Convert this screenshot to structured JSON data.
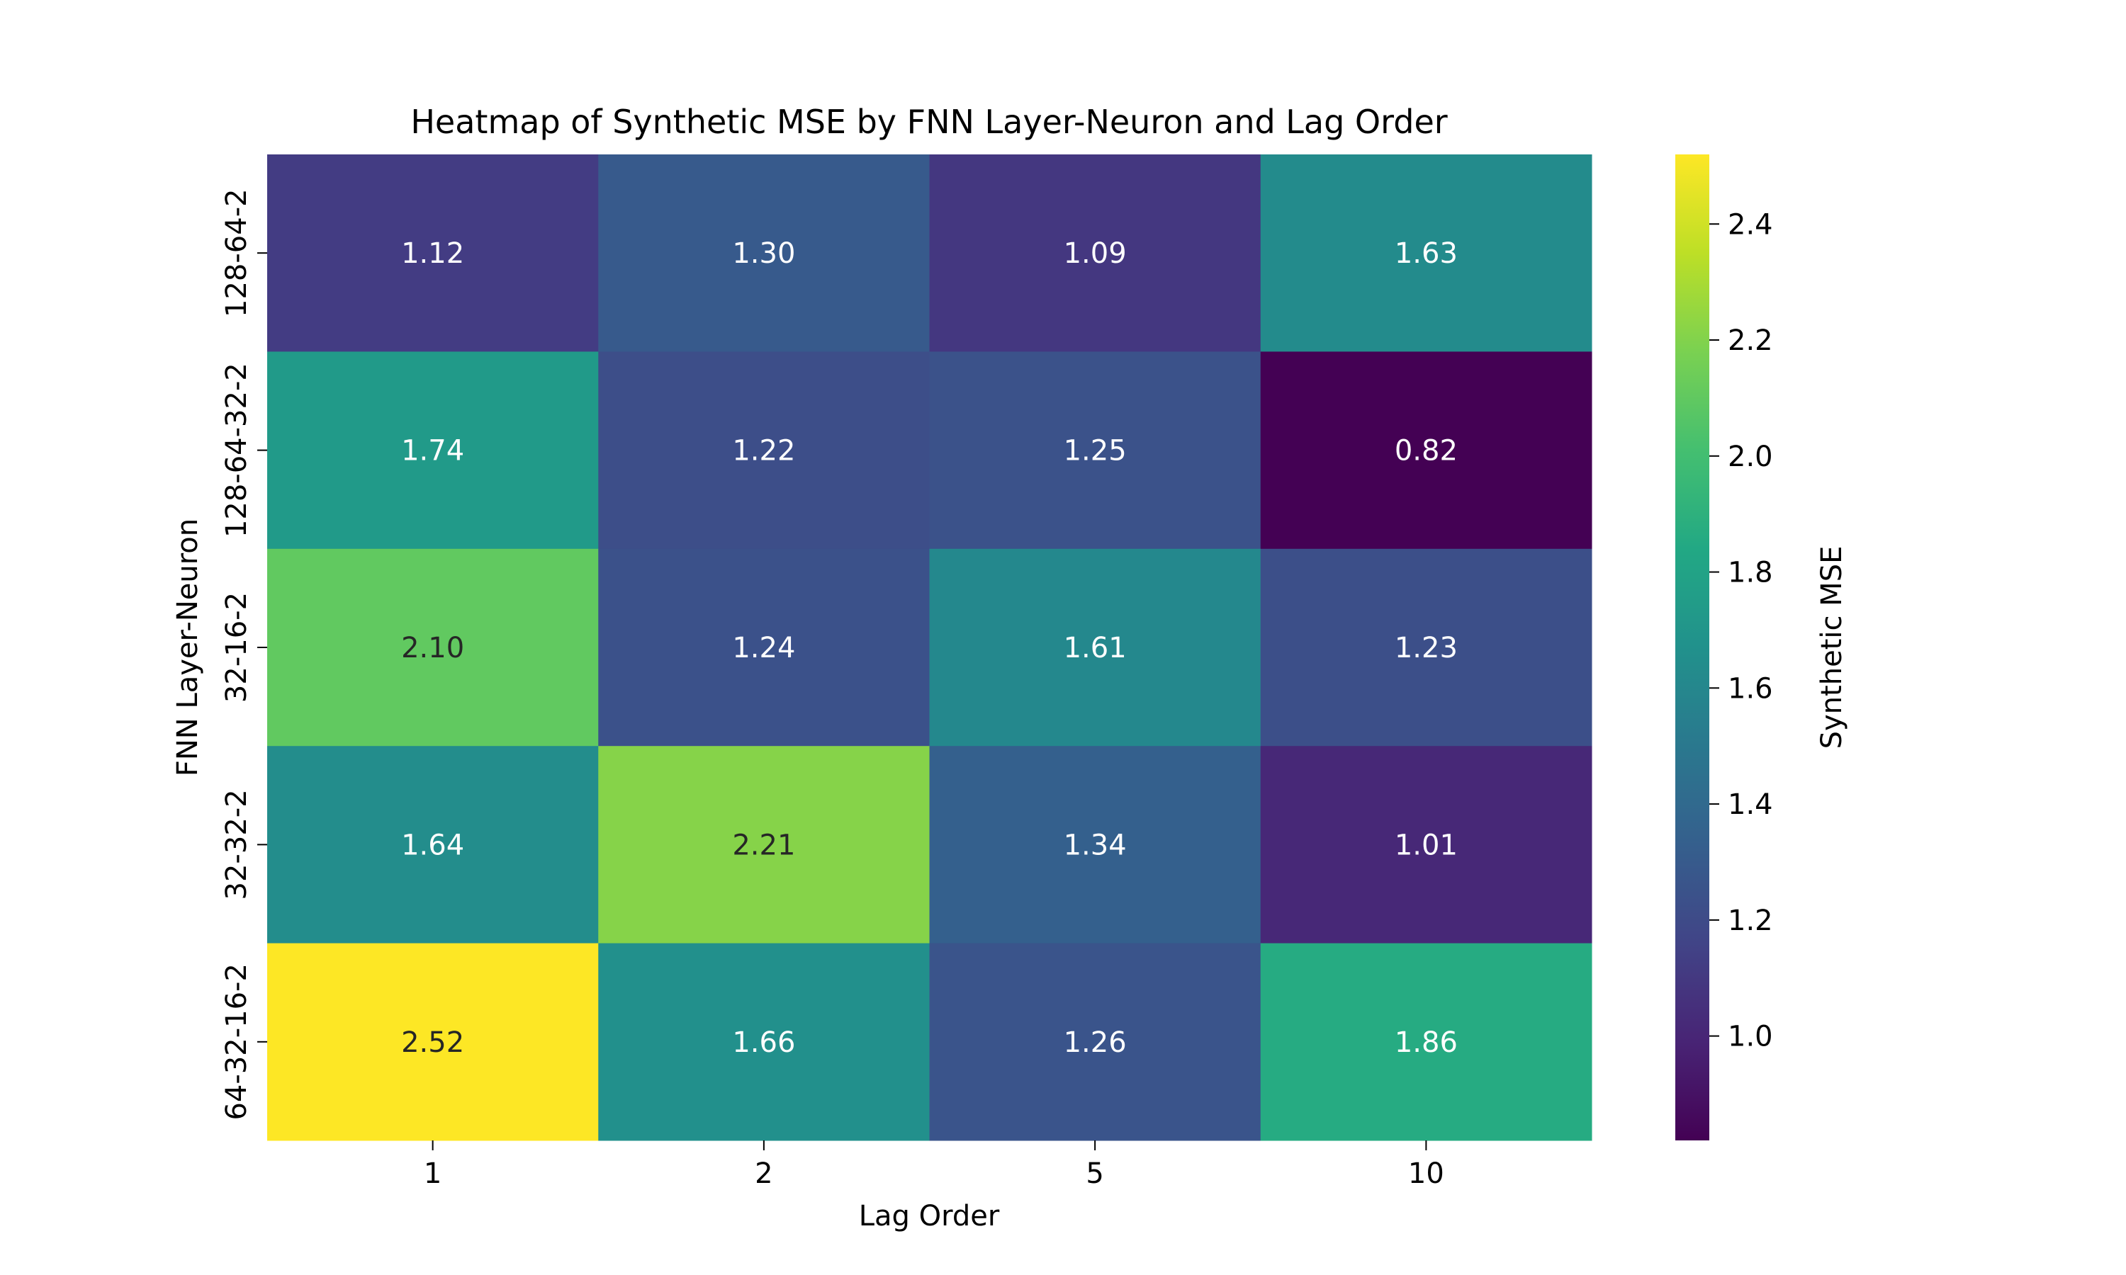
{
  "chart_data": {
    "type": "heatmap",
    "title": "Heatmap of Synthetic MSE by FNN Layer-Neuron and Lag Order",
    "xlabel": "Lag Order",
    "ylabel": "FNN Layer-Neuron",
    "x_categories": [
      "1",
      "2",
      "5",
      "10"
    ],
    "y_categories": [
      "128-64-2",
      "128-64-32-2",
      "32-16-2",
      "32-32-2",
      "64-32-16-2"
    ],
    "values": [
      [
        1.12,
        1.3,
        1.09,
        1.63
      ],
      [
        1.74,
        1.22,
        1.25,
        0.82
      ],
      [
        2.1,
        1.24,
        1.61,
        1.23
      ],
      [
        1.64,
        2.21,
        1.34,
        1.01
      ],
      [
        2.52,
        1.66,
        1.26,
        1.86
      ]
    ],
    "value_format": "0.00",
    "colormap": "viridis",
    "colorbar": {
      "label": "Synthetic MSE",
      "vmin": 0.82,
      "vmax": 2.52,
      "ticks": [
        "1.0",
        "1.2",
        "1.4",
        "1.6",
        "1.8",
        "2.0",
        "2.2",
        "2.4"
      ]
    },
    "grid": false
  }
}
